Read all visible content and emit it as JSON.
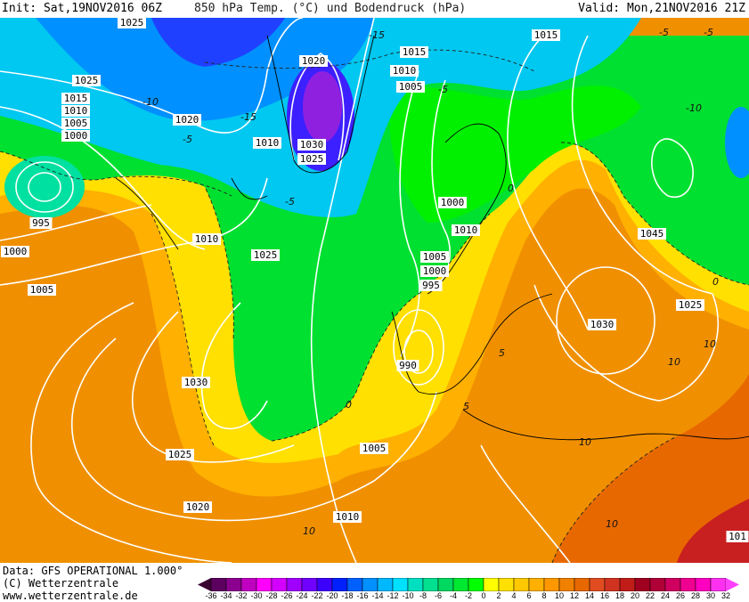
{
  "header": {
    "init": "Init: Sat,19NOV2016 06Z",
    "title": "850 hPa Temp. (°C) und Bodendruck (hPa)",
    "valid": "Valid: Mon,21NOV2016 21Z"
  },
  "footer": {
    "data_line": "Data: GFS OPERATIONAL 1.000°",
    "copyright": "(C) Wetterzentrale",
    "website": "www.wetterzentrale.de"
  },
  "colorbar": {
    "unit": "°C",
    "ticks": [
      "-36",
      "-34",
      "-32",
      "-30",
      "-28",
      "-26",
      "-24",
      "-22",
      "-20",
      "-18",
      "-16",
      "-14",
      "-12",
      "-10",
      "-8",
      "-6",
      "-4",
      "-2",
      "0",
      "2",
      "4",
      "6",
      "8",
      "10",
      "12",
      "14",
      "16",
      "18",
      "20",
      "22",
      "24",
      "26",
      "28",
      "30",
      "32"
    ],
    "colors": [
      "#5c0060",
      "#8c0090",
      "#c000c0",
      "#ff00ff",
      "#d400ff",
      "#a000ff",
      "#7000ff",
      "#3c00ff",
      "#0020ff",
      "#0060ff",
      "#0090ff",
      "#00b8ff",
      "#00e0ff",
      "#00e0c0",
      "#00e090",
      "#00d860",
      "#00e830",
      "#00ff00",
      "#ffff00",
      "#ffe000",
      "#ffc800",
      "#ffb000",
      "#ff9800",
      "#f08000",
      "#e86800",
      "#e04c20",
      "#d03420",
      "#c01c18",
      "#a00020",
      "#b00038",
      "#d00060",
      "#f00090",
      "#ff00c0",
      "#ff30f0"
    ],
    "low_arrow_color": "#3a0030",
    "high_arrow_color": "#ff40ff"
  },
  "map": {
    "isobar_labels": [
      "1025",
      "1025",
      "1015",
      "1010",
      "1005",
      "1000",
      "1020",
      "1010",
      "1020",
      "1030",
      "1025",
      "1015",
      "1010",
      "1005",
      "1015",
      "1000",
      "995",
      "1000",
      "1005",
      "1010",
      "1025",
      "1010",
      "1005",
      "1000",
      "995",
      "990",
      "1045",
      "1030",
      "1025",
      "1030",
      "1025",
      "1020",
      "1005",
      "1010",
      "101"
    ],
    "temp_labels": [
      "-15",
      "-15",
      "-10",
      "-5",
      "-5",
      "-10",
      "-5",
      "0",
      "-5",
      "0",
      "5",
      "10",
      "10",
      "10",
      "10",
      "5",
      "0",
      "10",
      "-5"
    ]
  }
}
